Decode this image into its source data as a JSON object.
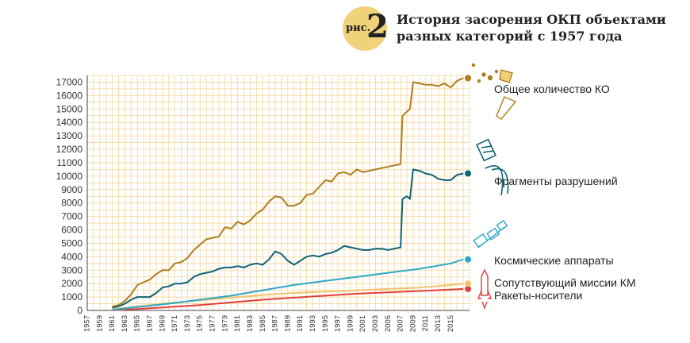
{
  "figure": {
    "badge_prefix": "рис.",
    "badge_number": "2",
    "title": "История засорения ОКП объектами разных категорий с 1957 года"
  },
  "colors": {
    "total": "#b07d1f",
    "fragments": "#0f6378",
    "spacecraft": "#2aa9c7",
    "mission": "#f2c26b",
    "rockets": "#e0413a",
    "grid": "#f3d79a",
    "axis": "#444444",
    "badge": "#f0d27a"
  },
  "chart_data": {
    "type": "line",
    "title": "История засорения ОКП объектами разных категорий с 1957 года",
    "xlabel": "",
    "ylabel": "",
    "xlim": [
      1957,
      2018
    ],
    "ylim": [
      0,
      17500
    ],
    "grid": true,
    "legend_placement": "right",
    "x_ticks": [
      "1957",
      "1959",
      "1961",
      "1963",
      "1965",
      "1967",
      "1969",
      "1971",
      "1973",
      "1975",
      "1977",
      "1979",
      "1981",
      "1983",
      "1985",
      "1987",
      "1989",
      "1991",
      "1993",
      "1995",
      "1997",
      "1999",
      "2001",
      "2003",
      "2005",
      "2007",
      "2009",
      "2011",
      "2013",
      "2015"
    ],
    "y_ticks": [
      "0",
      "1000",
      "2000",
      "3000",
      "4000",
      "5000",
      "6000",
      "7000",
      "8000",
      "9000",
      "10000",
      "11000",
      "12000",
      "13000",
      "14000",
      "15000",
      "16000",
      "17000"
    ],
    "series": [
      {
        "name": "Общее количество КО",
        "color_key": "total",
        "x": [
          1961,
          1962,
          1963,
          1964,
          1965,
          1966,
          1967,
          1968,
          1969,
          1970,
          1971,
          1972,
          1973,
          1974,
          1975,
          1976,
          1977,
          1978,
          1979,
          1980,
          1981,
          1982,
          1983,
          1984,
          1985,
          1986,
          1987,
          1988,
          1989,
          1990,
          1991,
          1992,
          1993,
          1994,
          1995,
          1996,
          1997,
          1998,
          1999,
          2000,
          2001,
          2002,
          2003,
          2004,
          2005,
          2006,
          2007,
          2007.3,
          2008,
          2008.5,
          2009,
          2010,
          2011,
          2012,
          2013,
          2014,
          2015,
          2016,
          2017
        ],
        "values": [
          300,
          400,
          700,
          1200,
          1900,
          2100,
          2300,
          2700,
          3000,
          3000,
          3500,
          3600,
          3900,
          4500,
          4900,
          5300,
          5400,
          5500,
          6200,
          6100,
          6600,
          6400,
          6700,
          7200,
          7500,
          8100,
          8500,
          8400,
          7800,
          7800,
          8000,
          8600,
          8700,
          9200,
          9700,
          9600,
          10200,
          10300,
          10100,
          10500,
          10300,
          10400,
          10500,
          10600,
          10700,
          10800,
          10900,
          14500,
          14800,
          15000,
          17000,
          16900,
          16800,
          16800,
          16700,
          16900,
          16600,
          17100,
          17300
        ]
      },
      {
        "name": "Фрагменты разрушений",
        "color_key": "fragments",
        "x": [
          1961,
          1962,
          1963,
          1964,
          1965,
          1966,
          1967,
          1968,
          1969,
          1970,
          1971,
          1972,
          1973,
          1974,
          1975,
          1976,
          1977,
          1978,
          1979,
          1980,
          1981,
          1982,
          1983,
          1984,
          1985,
          1986,
          1987,
          1988,
          1989,
          1990,
          1991,
          1992,
          1993,
          1994,
          1995,
          1996,
          1997,
          1998,
          1999,
          2000,
          2001,
          2002,
          2003,
          2004,
          2005,
          2006,
          2007,
          2007.3,
          2008,
          2008.5,
          2009,
          2010,
          2011,
          2012,
          2013,
          2014,
          2015,
          2016,
          2017
        ],
        "values": [
          200,
          300,
          500,
          800,
          1000,
          1000,
          1000,
          1300,
          1700,
          1800,
          2000,
          2000,
          2100,
          2500,
          2700,
          2800,
          2900,
          3100,
          3200,
          3200,
          3300,
          3200,
          3400,
          3500,
          3400,
          3800,
          4400,
          4200,
          3700,
          3400,
          3700,
          4000,
          4100,
          4000,
          4200,
          4300,
          4500,
          4800,
          4700,
          4600,
          4500,
          4500,
          4600,
          4600,
          4500,
          4600,
          4700,
          8300,
          8500,
          8300,
          10500,
          10400,
          10200,
          10100,
          9800,
          9700,
          9700,
          10100,
          10200
        ]
      },
      {
        "name": "Космические аппараты",
        "color_key": "spacecraft",
        "x": [
          1961,
          1965,
          1970,
          1975,
          1980,
          1985,
          1990,
          1995,
          2000,
          2005,
          2010,
          2015,
          2017
        ],
        "values": [
          50,
          250,
          500,
          800,
          1100,
          1500,
          1900,
          2200,
          2500,
          2800,
          3100,
          3500,
          3800
        ]
      },
      {
        "name": "Сопутствующий миссии КМ",
        "color_key": "mission",
        "x": [
          1961,
          1965,
          1970,
          1975,
          1980,
          1985,
          1990,
          1995,
          2000,
          2005,
          2010,
          2015,
          2017
        ],
        "values": [
          80,
          300,
          550,
          750,
          950,
          1150,
          1300,
          1400,
          1500,
          1600,
          1700,
          1900,
          2000
        ]
      },
      {
        "name": "Ракеты-носители",
        "color_key": "rockets",
        "x": [
          1961,
          1965,
          1970,
          1975,
          1980,
          1985,
          1990,
          1995,
          2000,
          2005,
          2010,
          2015,
          2017
        ],
        "values": [
          20,
          100,
          250,
          400,
          600,
          800,
          950,
          1100,
          1250,
          1350,
          1450,
          1550,
          1600
        ]
      }
    ]
  }
}
